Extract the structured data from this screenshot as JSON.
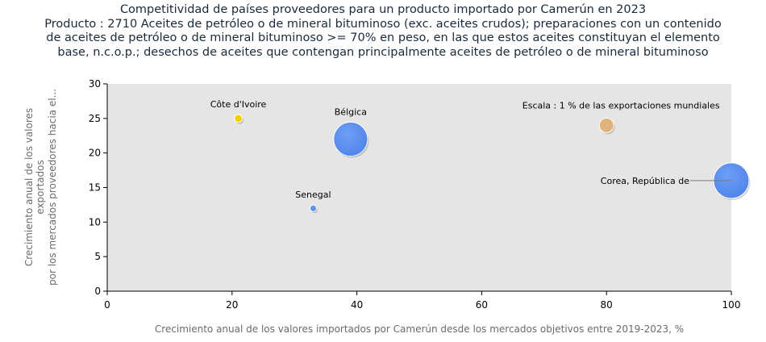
{
  "title": {
    "lines": [
      "Competitividad de países proveedores para un producto importado por Camerún en 2023",
      "Producto : 2710 Aceites de petróleo o de mineral bituminoso (exc. aceites crudos); preparaciones con un contenido",
      "de aceites de petróleo o de mineral bituminoso >= 70% en peso, en las que estos aceites constituyan el elemento",
      "base, n.c.o.p.; desechos de aceites que contengan principalmente aceites de petróleo o de mineral bituminoso"
    ]
  },
  "chart_data": {
    "type": "scatter",
    "xlabel": "Crecimiento anual de los valores importados por Camerún desde los mercados objetivos entre 2019-2023, %",
    "ylabel_lines": [
      "Crecimiento anual de los valores",
      "exportados",
      "por los  mercados  proveedores  hacia  el..."
    ],
    "xlim": [
      0,
      100
    ],
    "ylim": [
      0,
      30
    ],
    "xticks": [
      0,
      20,
      40,
      60,
      80,
      100
    ],
    "yticks": [
      0,
      5,
      10,
      15,
      20,
      25,
      30
    ],
    "grid": false,
    "points": [
      {
        "label": "Côte d'Ivoire",
        "x": 21,
        "y": 25,
        "size": 0.3,
        "color": "#f5d000"
      },
      {
        "label": "Bélgica",
        "x": 39,
        "y": 22,
        "size": 5.5,
        "color": "#5b8ff0"
      },
      {
        "label": "Senegal",
        "x": 33,
        "y": 12,
        "size": 0.2,
        "color": "#5b8ff0"
      },
      {
        "label": "Corea, República de",
        "x": 100,
        "y": 16,
        "size": 6.0,
        "color": "#5b8ff0"
      }
    ],
    "scale_reference": {
      "label": "Escala : 1 % de las exportaciones mundiales",
      "x": 80,
      "y": 24,
      "size": 1,
      "color": "#e0b27c"
    }
  }
}
